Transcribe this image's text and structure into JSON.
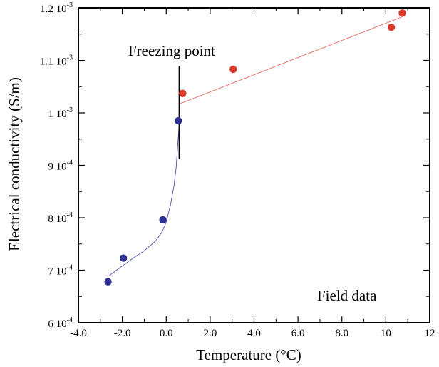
{
  "chart_data": {
    "type": "scatter",
    "xlabel": "Temperature (°C)",
    "ylabel": "Electrical conductivity (S/m)",
    "xlim": [
      -4.0,
      12.0
    ],
    "ylim": [
      0.0006,
      0.0012
    ],
    "xticks": [
      {
        "value": -4.0,
        "label": "-4.0"
      },
      {
        "value": -2.0,
        "label": "-2.0"
      },
      {
        "value": 0.0,
        "label": "0.0"
      },
      {
        "value": 2.0,
        "label": "2.0"
      },
      {
        "value": 4.0,
        "label": "4.0"
      },
      {
        "value": 6.0,
        "label": "6.0"
      },
      {
        "value": 8.0,
        "label": "8.0"
      },
      {
        "value": 10.0,
        "label": "10"
      },
      {
        "value": 12.0,
        "label": "12"
      }
    ],
    "yticks": [
      {
        "value": 0.0006,
        "mantissa": "6",
        "exponent": "-4"
      },
      {
        "value": 0.0007,
        "mantissa": "7",
        "exponent": "-4"
      },
      {
        "value": 0.0008,
        "mantissa": "8",
        "exponent": "-4"
      },
      {
        "value": 0.0009,
        "mantissa": "9",
        "exponent": "-4"
      },
      {
        "value": 0.001,
        "mantissa": "1",
        "exponent": "-3"
      },
      {
        "value": 0.0011,
        "mantissa": "1.1",
        "exponent": "-3"
      },
      {
        "value": 0.0012,
        "mantissa": "1.2",
        "exponent": "-3"
      }
    ],
    "grid": false,
    "series": [
      {
        "color": "#2e3192",
        "x": [
          -2.65,
          -1.95,
          -0.15,
          0.55
        ],
        "y": [
          0.000678,
          0.000723,
          0.000796,
          0.000985
        ]
      },
      {
        "color": "#d93a2b",
        "x": [
          0.75,
          3.05,
          10.25,
          10.75
        ],
        "y": [
          0.001037,
          0.001083,
          0.001163,
          0.00119
        ]
      }
    ],
    "fits": [
      {
        "color": "#3a3aa8",
        "x": [
          -2.65,
          -2.0,
          -1.5,
          -1.0,
          -0.5,
          -0.2,
          0.0,
          0.2,
          0.35,
          0.45,
          0.5,
          0.55,
          0.6
        ],
        "y": [
          0.000688,
          0.000708,
          0.000723,
          0.000737,
          0.000755,
          0.000772,
          0.000792,
          0.000825,
          0.00086,
          0.000895,
          0.000925,
          0.000955,
          0.000985
        ]
      },
      {
        "color": "#e05a4a",
        "x": [
          0.6,
          10.75
        ],
        "y": [
          0.001017,
          0.001183
        ]
      }
    ],
    "vline": {
      "x": 0.6,
      "y": [
        0.000912,
        0.001089
      ],
      "color": "#000000"
    },
    "annotations": {
      "freezing_point": "Freezing point",
      "field_data": "Field data"
    }
  }
}
